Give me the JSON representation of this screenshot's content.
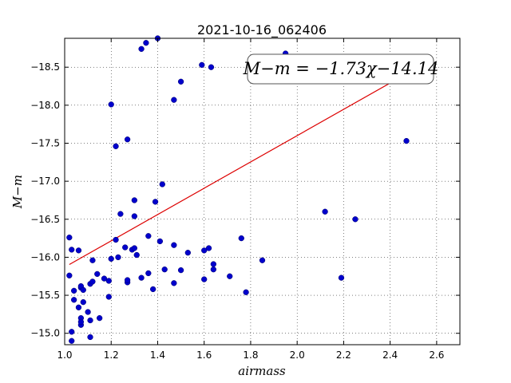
{
  "chart_data": {
    "type": "scatter",
    "title": "2021-10-16_062406",
    "xlabel": "airmass",
    "ylabel": "M−m",
    "xlim": [
      1.0,
      2.7
    ],
    "ylim": [
      -18.88,
      -14.85
    ],
    "y_inverted": true,
    "grid": true,
    "x_ticks": [
      1.0,
      1.2,
      1.4,
      1.6,
      1.8,
      2.0,
      2.2,
      2.4,
      2.6
    ],
    "x_tick_labels": [
      "1.0",
      "1.2",
      "1.4",
      "1.6",
      "1.8",
      "2.0",
      "2.2",
      "2.4",
      "2.6"
    ],
    "y_ticks": [
      -15.0,
      -15.5,
      -16.0,
      -16.5,
      -17.0,
      -17.5,
      -18.0,
      -18.5
    ],
    "y_tick_labels": [
      "−15.0",
      "−15.5",
      "−16.0",
      "−16.5",
      "−17.0",
      "−17.5",
      "−18.0",
      "−18.5"
    ],
    "annotation": "M−m = −1.73χ−14.14",
    "point_color": "#0000cc",
    "fit_color": "#dd0000",
    "fit": {
      "slope": -1.73,
      "intercept": -14.14,
      "x_range": [
        1.02,
        2.47
      ]
    },
    "series": [
      {
        "points": [
          [
            1.02,
            -15.76
          ],
          [
            1.02,
            -16.26
          ],
          [
            1.03,
            -15.02
          ],
          [
            1.03,
            -16.1
          ],
          [
            1.03,
            -14.9
          ],
          [
            1.04,
            -15.56
          ],
          [
            1.04,
            -15.44
          ],
          [
            1.06,
            -15.34
          ],
          [
            1.06,
            -16.09
          ],
          [
            1.07,
            -15.2
          ],
          [
            1.07,
            -15.11
          ],
          [
            1.07,
            -15.15
          ],
          [
            1.07,
            -15.6
          ],
          [
            1.07,
            -15.62
          ],
          [
            1.08,
            -15.41
          ],
          [
            1.08,
            -15.57
          ],
          [
            1.1,
            -15.28
          ],
          [
            1.11,
            -14.95
          ],
          [
            1.11,
            -15.17
          ],
          [
            1.11,
            -15.65
          ],
          [
            1.12,
            -15.68
          ],
          [
            1.12,
            -15.96
          ],
          [
            1.14,
            -15.78
          ],
          [
            1.15,
            -15.2
          ],
          [
            1.17,
            -15.72
          ],
          [
            1.19,
            -15.48
          ],
          [
            1.19,
            -15.69
          ],
          [
            1.2,
            -15.98
          ],
          [
            1.2,
            -18.01
          ],
          [
            1.22,
            -16.23
          ],
          [
            1.22,
            -17.46
          ],
          [
            1.23,
            -16.0
          ],
          [
            1.24,
            -16.57
          ],
          [
            1.26,
            -16.13
          ],
          [
            1.27,
            -15.67
          ],
          [
            1.27,
            -15.7
          ],
          [
            1.27,
            -17.55
          ],
          [
            1.29,
            -16.1
          ],
          [
            1.3,
            -16.12
          ],
          [
            1.3,
            -16.54
          ],
          [
            1.3,
            -16.75
          ],
          [
            1.31,
            -16.03
          ],
          [
            1.33,
            -15.73
          ],
          [
            1.33,
            -18.74
          ],
          [
            1.35,
            -18.82
          ],
          [
            1.36,
            -16.28
          ],
          [
            1.36,
            -15.79
          ],
          [
            1.38,
            -15.58
          ],
          [
            1.39,
            -16.73
          ],
          [
            1.4,
            -18.88
          ],
          [
            1.41,
            -16.21
          ],
          [
            1.42,
            -16.96
          ],
          [
            1.43,
            -15.84
          ],
          [
            1.47,
            -16.16
          ],
          [
            1.47,
            -18.07
          ],
          [
            1.47,
            -15.66
          ],
          [
            1.5,
            -15.83
          ],
          [
            1.5,
            -18.31
          ],
          [
            1.53,
            -16.06
          ],
          [
            1.59,
            -18.53
          ],
          [
            1.6,
            -16.09
          ],
          [
            1.6,
            -15.71
          ],
          [
            1.62,
            -16.12
          ],
          [
            1.63,
            -18.5
          ],
          [
            1.64,
            -15.84
          ],
          [
            1.64,
            -15.91
          ],
          [
            1.71,
            -15.75
          ],
          [
            1.76,
            -16.25
          ],
          [
            1.78,
            -15.54
          ],
          [
            1.85,
            -15.96
          ],
          [
            1.95,
            -18.68
          ],
          [
            2.12,
            -16.6
          ],
          [
            2.19,
            -15.73
          ],
          [
            2.25,
            -16.5
          ],
          [
            2.47,
            -17.53
          ]
        ]
      }
    ]
  }
}
